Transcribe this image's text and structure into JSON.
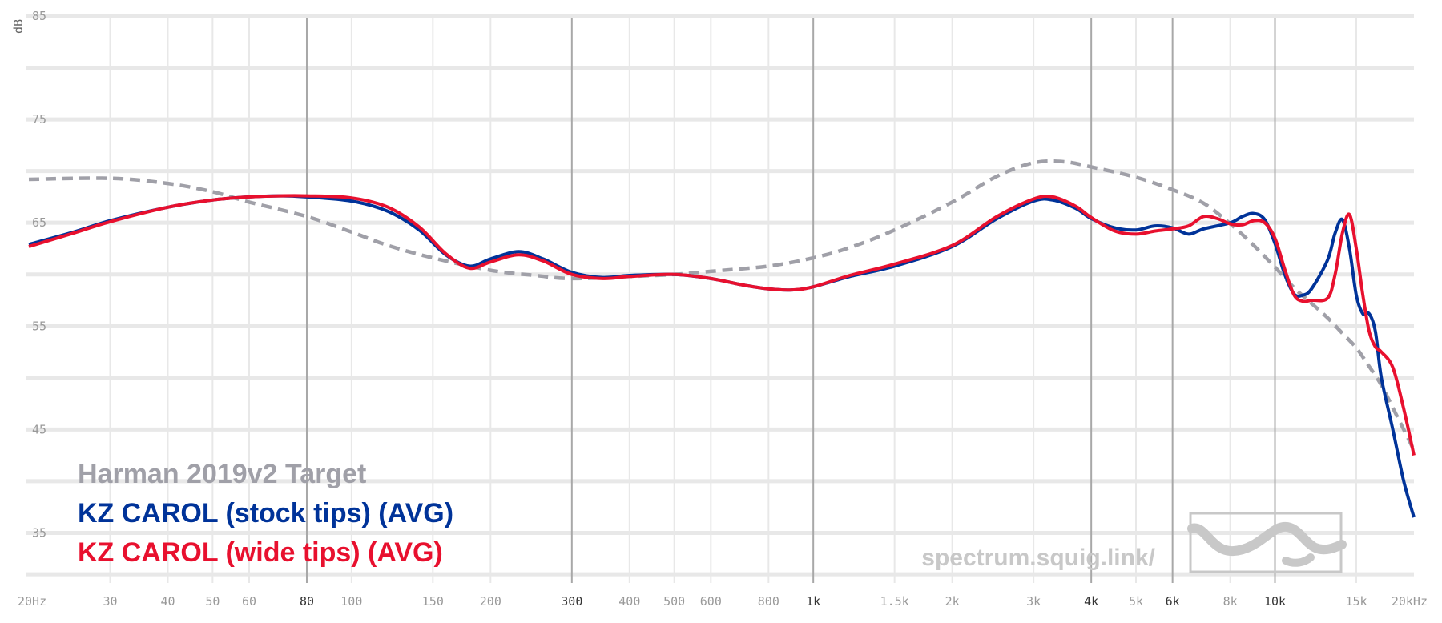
{
  "chart_data": {
    "type": "line",
    "ylabel": "dB",
    "xlabel": "",
    "title": "",
    "x_scale": "log",
    "xlim": [
      20,
      20000
    ],
    "ylim": [
      30,
      85
    ],
    "x_ticks": [
      {
        "value": 20,
        "label": "20Hz",
        "major": false
      },
      {
        "value": 30,
        "label": "30",
        "major": false
      },
      {
        "value": 40,
        "label": "40",
        "major": false
      },
      {
        "value": 50,
        "label": "50",
        "major": false
      },
      {
        "value": 60,
        "label": "60",
        "major": false
      },
      {
        "value": 80,
        "label": "80",
        "major": true
      },
      {
        "value": 100,
        "label": "100",
        "major": false
      },
      {
        "value": 150,
        "label": "150",
        "major": false
      },
      {
        "value": 200,
        "label": "200",
        "major": false
      },
      {
        "value": 300,
        "label": "300",
        "major": true
      },
      {
        "value": 400,
        "label": "400",
        "major": false
      },
      {
        "value": 500,
        "label": "500",
        "major": false
      },
      {
        "value": 600,
        "label": "600",
        "major": false
      },
      {
        "value": 800,
        "label": "800",
        "major": false
      },
      {
        "value": 1000,
        "label": "1k",
        "major": true
      },
      {
        "value": 1500,
        "label": "1.5k",
        "major": false
      },
      {
        "value": 2000,
        "label": "2k",
        "major": false
      },
      {
        "value": 3000,
        "label": "3k",
        "major": false
      },
      {
        "value": 4000,
        "label": "4k",
        "major": true
      },
      {
        "value": 5000,
        "label": "5k",
        "major": false
      },
      {
        "value": 6000,
        "label": "6k",
        "major": true
      },
      {
        "value": 8000,
        "label": "8k",
        "major": false
      },
      {
        "value": 10000,
        "label": "10k",
        "major": true
      },
      {
        "value": 15000,
        "label": "15k",
        "major": false
      },
      {
        "value": 20000,
        "label": "20kHz",
        "major": false
      }
    ],
    "y_ticks": [
      {
        "value": 85,
        "label": "85"
      },
      {
        "value": 75,
        "label": "75"
      },
      {
        "value": 65,
        "label": "65"
      },
      {
        "value": 55,
        "label": "55"
      },
      {
        "value": 45,
        "label": "45"
      },
      {
        "value": 35,
        "label": "35"
      }
    ],
    "y_minor_gridlines": [
      80,
      70,
      60,
      50,
      40,
      31
    ],
    "grid": true,
    "legend_position": "bottom-left",
    "series": [
      {
        "name": "Harman 2019v2 Target",
        "color": "#a0a0a8",
        "dashed": true,
        "points": [
          [
            20,
            69.2
          ],
          [
            30,
            69.3
          ],
          [
            40,
            68.8
          ],
          [
            50,
            68
          ],
          [
            60,
            67
          ],
          [
            80,
            65.6
          ],
          [
            100,
            64.1
          ],
          [
            120,
            62.8
          ],
          [
            150,
            61.6
          ],
          [
            200,
            60.4
          ],
          [
            250,
            59.9
          ],
          [
            300,
            59.6
          ],
          [
            400,
            59.8
          ],
          [
            500,
            60
          ],
          [
            600,
            60.3
          ],
          [
            800,
            60.8
          ],
          [
            1000,
            61.6
          ],
          [
            1200,
            62.6
          ],
          [
            1500,
            64.3
          ],
          [
            2000,
            67
          ],
          [
            2500,
            69.5
          ],
          [
            3000,
            70.8
          ],
          [
            3500,
            70.9
          ],
          [
            4000,
            70.4
          ],
          [
            5000,
            69.4
          ],
          [
            6000,
            68.2
          ],
          [
            7000,
            66.9
          ],
          [
            8000,
            64.9
          ],
          [
            9000,
            62.8
          ],
          [
            10000,
            60.7
          ],
          [
            11000,
            58.7
          ],
          [
            12000,
            57.2
          ],
          [
            13000,
            55.8
          ],
          [
            14000,
            54.3
          ],
          [
            15000,
            52.9
          ],
          [
            16000,
            51.1
          ],
          [
            17000,
            49.3
          ],
          [
            18000,
            47.1
          ],
          [
            19000,
            45
          ],
          [
            20000,
            43
          ]
        ]
      },
      {
        "name": "KZ CAROL (stock tips) (AVG)",
        "color": "#003399",
        "dashed": false,
        "points": [
          [
            20,
            62.9
          ],
          [
            25,
            64.1
          ],
          [
            30,
            65.2
          ],
          [
            40,
            66.5
          ],
          [
            50,
            67.2
          ],
          [
            60,
            67.5
          ],
          [
            70,
            67.6
          ],
          [
            80,
            67.5
          ],
          [
            100,
            67.1
          ],
          [
            120,
            66.1
          ],
          [
            140,
            64.3
          ],
          [
            160,
            61.9
          ],
          [
            180,
            60.8
          ],
          [
            200,
            61.5
          ],
          [
            230,
            62.2
          ],
          [
            260,
            61.5
          ],
          [
            300,
            60.2
          ],
          [
            350,
            59.7
          ],
          [
            400,
            59.9
          ],
          [
            500,
            60
          ],
          [
            600,
            59.6
          ],
          [
            700,
            59
          ],
          [
            800,
            58.6
          ],
          [
            900,
            58.5
          ],
          [
            1000,
            58.8
          ],
          [
            1200,
            59.8
          ],
          [
            1500,
            60.8
          ],
          [
            2000,
            62.7
          ],
          [
            2500,
            65.4
          ],
          [
            3000,
            67.1
          ],
          [
            3300,
            67.2
          ],
          [
            3700,
            66.4
          ],
          [
            4000,
            65.4
          ],
          [
            4500,
            64.5
          ],
          [
            5000,
            64.3
          ],
          [
            5500,
            64.7
          ],
          [
            6000,
            64.5
          ],
          [
            6500,
            63.9
          ],
          [
            7000,
            64.4
          ],
          [
            8000,
            65
          ],
          [
            8500,
            65.6
          ],
          [
            9000,
            65.9
          ],
          [
            9500,
            65.3
          ],
          [
            10000,
            63
          ],
          [
            10500,
            60
          ],
          [
            11000,
            58.1
          ],
          [
            11500,
            58
          ],
          [
            12000,
            58.6
          ],
          [
            13000,
            61.4
          ],
          [
            13500,
            64
          ],
          [
            14000,
            65.3
          ],
          [
            14500,
            62.5
          ],
          [
            15000,
            58
          ],
          [
            15500,
            56.2
          ],
          [
            16000,
            56.2
          ],
          [
            16500,
            54.5
          ],
          [
            17000,
            50
          ],
          [
            18000,
            45
          ],
          [
            19000,
            40
          ],
          [
            20000,
            36.5
          ]
        ]
      },
      {
        "name": "KZ CAROL (wide tips) (AVG)",
        "color": "#e8102e",
        "dashed": false,
        "points": [
          [
            20,
            62.7
          ],
          [
            25,
            64
          ],
          [
            30,
            65.1
          ],
          [
            40,
            66.5
          ],
          [
            50,
            67.2
          ],
          [
            60,
            67.5
          ],
          [
            70,
            67.6
          ],
          [
            80,
            67.6
          ],
          [
            100,
            67.4
          ],
          [
            120,
            66.5
          ],
          [
            140,
            64.6
          ],
          [
            160,
            62
          ],
          [
            180,
            60.6
          ],
          [
            200,
            61.2
          ],
          [
            230,
            61.9
          ],
          [
            260,
            61.3
          ],
          [
            300,
            60
          ],
          [
            350,
            59.6
          ],
          [
            400,
            59.8
          ],
          [
            500,
            60
          ],
          [
            600,
            59.6
          ],
          [
            700,
            59
          ],
          [
            800,
            58.6
          ],
          [
            900,
            58.5
          ],
          [
            1000,
            58.8
          ],
          [
            1200,
            59.9
          ],
          [
            1500,
            61
          ],
          [
            2000,
            62.8
          ],
          [
            2500,
            65.6
          ],
          [
            3000,
            67.3
          ],
          [
            3300,
            67.5
          ],
          [
            3700,
            66.6
          ],
          [
            4000,
            65.5
          ],
          [
            4500,
            64.2
          ],
          [
            5000,
            63.9
          ],
          [
            5500,
            64.2
          ],
          [
            6000,
            64.4
          ],
          [
            6500,
            64.7
          ],
          [
            7000,
            65.6
          ],
          [
            7500,
            65.4
          ],
          [
            8000,
            64.9
          ],
          [
            8500,
            64.8
          ],
          [
            9000,
            65.2
          ],
          [
            9500,
            65
          ],
          [
            10000,
            63.5
          ],
          [
            10500,
            60.5
          ],
          [
            11000,
            58
          ],
          [
            11500,
            57.4
          ],
          [
            12000,
            57.5
          ],
          [
            13000,
            57.7
          ],
          [
            13500,
            60
          ],
          [
            14000,
            64
          ],
          [
            14500,
            65.8
          ],
          [
            15000,
            62.5
          ],
          [
            15500,
            58
          ],
          [
            16000,
            54.5
          ],
          [
            16500,
            53
          ],
          [
            17000,
            52.5
          ],
          [
            18000,
            51
          ],
          [
            19000,
            47
          ],
          [
            20000,
            42.5
          ]
        ]
      }
    ],
    "watermark": "spectrum.squig.link/"
  },
  "colors": {
    "gridline": "#e8e8e8",
    "gridline_major": "#a8a8a8",
    "tick_label": "#999999",
    "tick_label_major": "#333333",
    "watermark": "#c8c8c8"
  }
}
